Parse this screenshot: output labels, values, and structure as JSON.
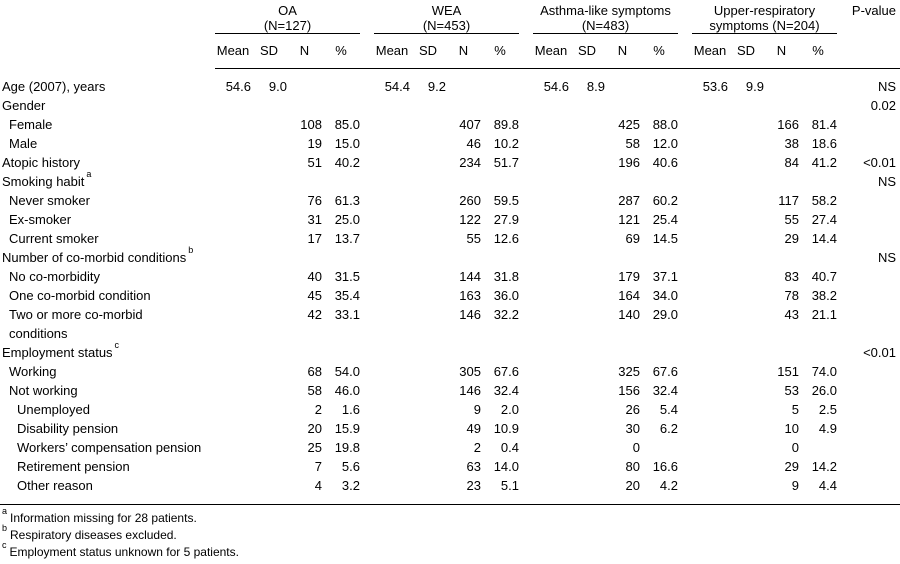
{
  "table": {
    "col_groups": [
      {
        "line1": "OA",
        "line2": "(N=127)"
      },
      {
        "line1": "WEA",
        "line2": "(N=453)"
      },
      {
        "line1": "Asthma-like symptoms",
        "line2": "(N=483)"
      },
      {
        "line1": "Upper-respiratory",
        "line2": "symptoms (N=204)"
      }
    ],
    "subheaders": [
      "Mean",
      "SD",
      "N",
      "%"
    ],
    "pvalue_header": "P-value",
    "rows": [
      {
        "label": "Age (2007), years",
        "indent": 0,
        "groups": [
          [
            "54.6",
            "9.0",
            "",
            ""
          ],
          [
            "54.4",
            "9.2",
            "",
            ""
          ],
          [
            "54.6",
            "8.9",
            "",
            ""
          ],
          [
            "53.6",
            "9.9",
            "",
            ""
          ]
        ],
        "p": "NS"
      },
      {
        "label": "Gender",
        "indent": 0,
        "groups": [
          [
            "",
            "",
            "",
            ""
          ],
          [
            "",
            "",
            "",
            ""
          ],
          [
            "",
            "",
            "",
            ""
          ],
          [
            "",
            "",
            "",
            ""
          ]
        ],
        "p": "0.02"
      },
      {
        "label": "Female",
        "indent": 1,
        "groups": [
          [
            "",
            "",
            "108",
            "85.0"
          ],
          [
            "",
            "",
            "407",
            "89.8"
          ],
          [
            "",
            "",
            "425",
            "88.0"
          ],
          [
            "",
            "",
            "166",
            "81.4"
          ]
        ],
        "p": ""
      },
      {
        "label": "Male",
        "indent": 1,
        "groups": [
          [
            "",
            "",
            "19",
            "15.0"
          ],
          [
            "",
            "",
            "46",
            "10.2"
          ],
          [
            "",
            "",
            "58",
            "12.0"
          ],
          [
            "",
            "",
            "38",
            "18.6"
          ]
        ],
        "p": ""
      },
      {
        "label": "Atopic history",
        "indent": 0,
        "groups": [
          [
            "",
            "",
            "51",
            "40.2"
          ],
          [
            "",
            "",
            "234",
            "51.7"
          ],
          [
            "",
            "",
            "196",
            "40.6"
          ],
          [
            "",
            "",
            "84",
            "41.2"
          ]
        ],
        "p": "<0.01"
      },
      {
        "label": "Smoking habit",
        "sup": "a",
        "indent": 0,
        "groups": [
          [
            "",
            "",
            "",
            ""
          ],
          [
            "",
            "",
            "",
            ""
          ],
          [
            "",
            "",
            "",
            ""
          ],
          [
            "",
            "",
            "",
            ""
          ]
        ],
        "p": "NS"
      },
      {
        "label": "Never smoker",
        "indent": 1,
        "groups": [
          [
            "",
            "",
            "76",
            "61.3"
          ],
          [
            "",
            "",
            "260",
            "59.5"
          ],
          [
            "",
            "",
            "287",
            "60.2"
          ],
          [
            "",
            "",
            "117",
            "58.2"
          ]
        ],
        "p": ""
      },
      {
        "label": "Ex-smoker",
        "indent": 1,
        "groups": [
          [
            "",
            "",
            "31",
            "25.0"
          ],
          [
            "",
            "",
            "122",
            "27.9"
          ],
          [
            "",
            "",
            "121",
            "25.4"
          ],
          [
            "",
            "",
            "55",
            "27.4"
          ]
        ],
        "p": ""
      },
      {
        "label": "Current smoker",
        "indent": 1,
        "groups": [
          [
            "",
            "",
            "17",
            "13.7"
          ],
          [
            "",
            "",
            "55",
            "12.6"
          ],
          [
            "",
            "",
            "69",
            "14.5"
          ],
          [
            "",
            "",
            "29",
            "14.4"
          ]
        ],
        "p": ""
      },
      {
        "label": "Number of co-morbid conditions",
        "sup": "b",
        "indent": 0,
        "groups": [
          [
            "",
            "",
            "",
            ""
          ],
          [
            "",
            "",
            "",
            ""
          ],
          [
            "",
            "",
            "",
            ""
          ],
          [
            "",
            "",
            "",
            ""
          ]
        ],
        "p": "NS"
      },
      {
        "label": "No co-morbidity",
        "indent": 1,
        "groups": [
          [
            "",
            "",
            "40",
            "31.5"
          ],
          [
            "",
            "",
            "144",
            "31.8"
          ],
          [
            "",
            "",
            "179",
            "37.1"
          ],
          [
            "",
            "",
            "83",
            "40.7"
          ]
        ],
        "p": ""
      },
      {
        "label": "One co-morbid condition",
        "indent": 1,
        "groups": [
          [
            "",
            "",
            "45",
            "35.4"
          ],
          [
            "",
            "",
            "163",
            "36.0"
          ],
          [
            "",
            "",
            "164",
            "34.0"
          ],
          [
            "",
            "",
            "78",
            "38.2"
          ]
        ],
        "p": ""
      },
      {
        "label": "Two or more co-morbid\nconditions",
        "indent": 1,
        "groups": [
          [
            "",
            "",
            "42",
            "33.1"
          ],
          [
            "",
            "",
            "146",
            "32.2"
          ],
          [
            "",
            "",
            "140",
            "29.0"
          ],
          [
            "",
            "",
            "43",
            "21.1"
          ]
        ],
        "p": ""
      },
      {
        "label": "Employment status",
        "sup": "c",
        "indent": 0,
        "groups": [
          [
            "",
            "",
            "",
            ""
          ],
          [
            "",
            "",
            "",
            ""
          ],
          [
            "",
            "",
            "",
            ""
          ],
          [
            "",
            "",
            "",
            ""
          ]
        ],
        "p": "<0.01"
      },
      {
        "label": "Working",
        "indent": 1,
        "groups": [
          [
            "",
            "",
            "68",
            "54.0"
          ],
          [
            "",
            "",
            "305",
            "67.6"
          ],
          [
            "",
            "",
            "325",
            "67.6"
          ],
          [
            "",
            "",
            "151",
            "74.0"
          ]
        ],
        "p": ""
      },
      {
        "label": "Not working",
        "indent": 1,
        "groups": [
          [
            "",
            "",
            "58",
            "46.0"
          ],
          [
            "",
            "",
            "146",
            "32.4"
          ],
          [
            "",
            "",
            "156",
            "32.4"
          ],
          [
            "",
            "",
            "53",
            "26.0"
          ]
        ],
        "p": ""
      },
      {
        "label": "Unemployed",
        "indent": 2,
        "groups": [
          [
            "",
            "",
            "2",
            "1.6"
          ],
          [
            "",
            "",
            "9",
            "2.0"
          ],
          [
            "",
            "",
            "26",
            "5.4"
          ],
          [
            "",
            "",
            "5",
            "2.5"
          ]
        ],
        "p": ""
      },
      {
        "label": "Disability pension",
        "indent": 2,
        "groups": [
          [
            "",
            "",
            "20",
            "15.9"
          ],
          [
            "",
            "",
            "49",
            "10.9"
          ],
          [
            "",
            "",
            "30",
            "6.2"
          ],
          [
            "",
            "",
            "10",
            "4.9"
          ]
        ],
        "p": ""
      },
      {
        "label": "Workers’ compensation pension",
        "indent": 2,
        "groups": [
          [
            "",
            "",
            "25",
            "19.8"
          ],
          [
            "",
            "",
            "2",
            "0.4"
          ],
          [
            "",
            "",
            "0",
            ""
          ],
          [
            "",
            "",
            "0",
            ""
          ]
        ],
        "p": ""
      },
      {
        "label": "Retirement pension",
        "indent": 2,
        "groups": [
          [
            "",
            "",
            "7",
            "5.6"
          ],
          [
            "",
            "",
            "63",
            "14.0"
          ],
          [
            "",
            "",
            "80",
            "16.6"
          ],
          [
            "",
            "",
            "29",
            "14.2"
          ]
        ],
        "p": ""
      },
      {
        "label": "Other reason",
        "indent": 2,
        "groups": [
          [
            "",
            "",
            "4",
            "3.2"
          ],
          [
            "",
            "",
            "23",
            "5.1"
          ],
          [
            "",
            "",
            "20",
            "4.2"
          ],
          [
            "",
            "",
            "9",
            "4.4"
          ]
        ],
        "p": ""
      }
    ],
    "footnotes": [
      {
        "marker": "a",
        "text": "Information missing for 28 patients."
      },
      {
        "marker": "b",
        "text": "Respiratory diseases excluded."
      },
      {
        "marker": "c",
        "text": "Employment status unknown for 5 patients."
      }
    ]
  }
}
